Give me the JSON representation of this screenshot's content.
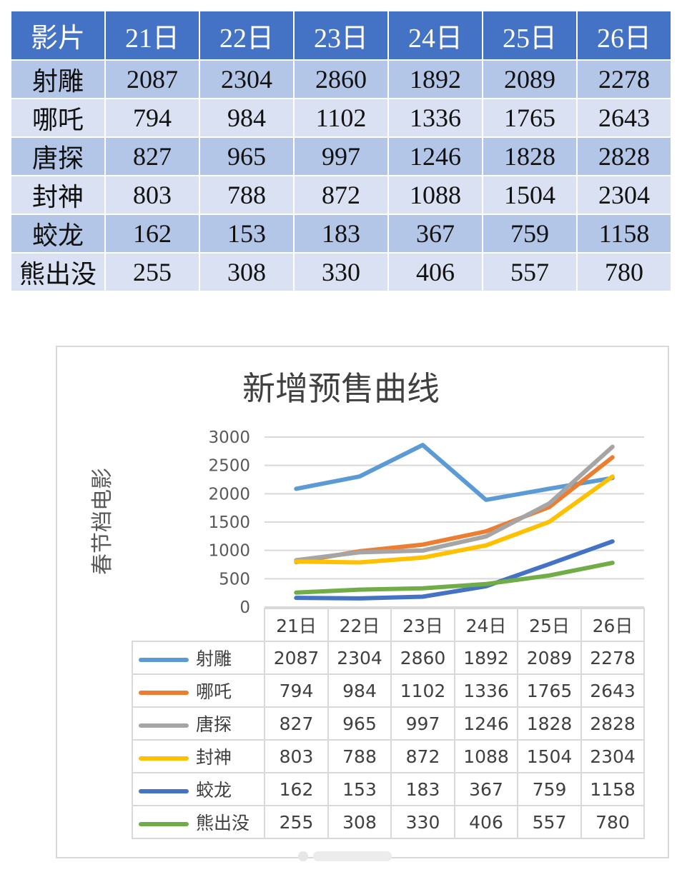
{
  "table": {
    "header_label": "影片",
    "days": [
      "21日",
      "22日",
      "23日",
      "24日",
      "25日",
      "26日"
    ],
    "rows": [
      {
        "name": "射雕",
        "values": [
          "2087",
          "2304",
          "2860",
          "1892",
          "2089",
          "2278"
        ]
      },
      {
        "name": "哪吒",
        "values": [
          "794",
          "984",
          "1102",
          "1336",
          "1765",
          "2643"
        ]
      },
      {
        "name": "唐探",
        "values": [
          "827",
          "965",
          "997",
          "1246",
          "1828",
          "2828"
        ]
      },
      {
        "name": "封神",
        "values": [
          "803",
          "788",
          "872",
          "1088",
          "1504",
          "2304"
        ]
      },
      {
        "name": "蛟龙",
        "values": [
          "162",
          "153",
          "183",
          "367",
          "759",
          "1158"
        ]
      },
      {
        "name": "熊出没",
        "values": [
          "255",
          "308",
          "330",
          "406",
          "557",
          "780"
        ]
      }
    ]
  },
  "chart_data": {
    "type": "line",
    "title": "新增预售曲线",
    "ylabel": "春节档电影",
    "xlabel": "",
    "categories": [
      "21日",
      "22日",
      "23日",
      "24日",
      "25日",
      "26日"
    ],
    "ylim": [
      0,
      3000
    ],
    "yticks": [
      0,
      500,
      1000,
      1500,
      2000,
      2500,
      3000
    ],
    "grid": true,
    "legend": "data-table-below",
    "series": [
      {
        "name": "射雕",
        "color": "#5b9bd5",
        "values": [
          2087,
          2304,
          2860,
          1892,
          2089,
          2278
        ]
      },
      {
        "name": "哪吒",
        "color": "#ed7d31",
        "values": [
          794,
          984,
          1102,
          1336,
          1765,
          2643
        ]
      },
      {
        "name": "唐探",
        "color": "#a5a5a5",
        "values": [
          827,
          965,
          997,
          1246,
          1828,
          2828
        ]
      },
      {
        "name": "封神",
        "color": "#ffc000",
        "values": [
          803,
          788,
          872,
          1088,
          1504,
          2304
        ]
      },
      {
        "name": "蛟龙",
        "color": "#4472c4",
        "values": [
          162,
          153,
          183,
          367,
          759,
          1158
        ]
      },
      {
        "name": "熊出没",
        "color": "#70ad47",
        "values": [
          255,
          308,
          330,
          406,
          557,
          780
        ]
      }
    ]
  }
}
